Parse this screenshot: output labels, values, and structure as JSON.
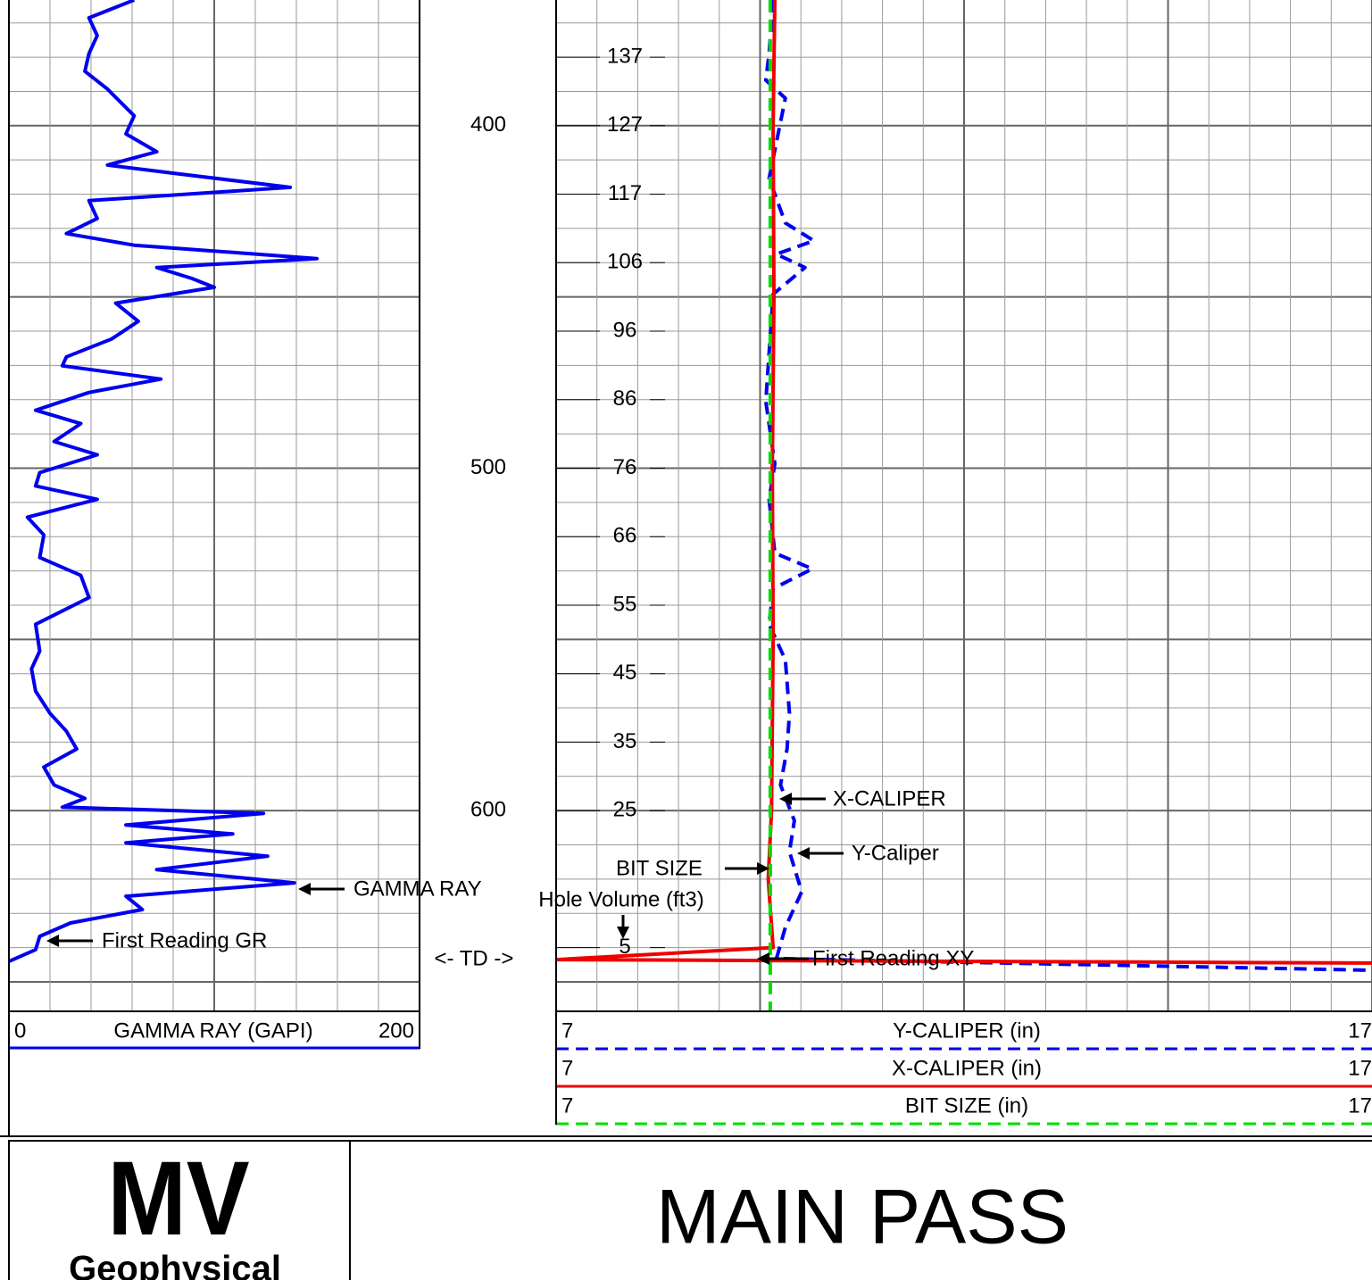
{
  "depth": {
    "ylim": [
      363.3,
      658.6
    ],
    "ticks": [
      400,
      500,
      600
    ],
    "grid_minor": 10,
    "grid_major": 50
  },
  "gamma_track": {
    "xlim": [
      0,
      200
    ],
    "grid_step": 20,
    "grid_major": 100,
    "series": [
      {
        "name": "GAMMA RAY (GAPI)",
        "color": "#0000ee",
        "depths": [
          363.3,
          368.5,
          373.7,
          378.9,
          384.1,
          389.3,
          397.1,
          402.4,
          407.6,
          411.5,
          414.1,
          418.0,
          421.9,
          427.1,
          431.5,
          434.9,
          438.8,
          441.4,
          444.6,
          447.2,
          451.8,
          457.1,
          462.3,
          467.5,
          470.1,
          474.0,
          477.9,
          483.1,
          487.0,
          492.2,
          496.1,
          501.3,
          505.2,
          509.1,
          514.3,
          519.5,
          526.1,
          531.3,
          537.8,
          545.6,
          553.4,
          558.6,
          565.1,
          571.6,
          576.8,
          582.0,
          587.3,
          592.5,
          596.4,
          599.0,
          600.8,
          604.2,
          606.8,
          609.4,
          613.3,
          617.2,
          621.1,
          625.0,
          628.9,
          632.8,
          636.7,
          640.6,
          644.0
        ],
        "values": [
          61,
          39,
          43,
          39,
          37,
          48,
          61,
          57,
          72,
          48,
          83,
          137,
          39,
          43,
          28,
          61,
          150,
          72,
          89,
          100,
          52,
          63,
          50,
          28,
          26,
          74,
          39,
          13,
          35,
          22,
          43,
          15,
          13,
          43,
          9,
          17,
          15,
          35,
          39,
          13,
          15,
          11,
          13,
          20,
          28,
          33,
          17,
          22,
          37,
          26,
          124,
          57,
          109,
          57,
          126,
          72,
          139,
          57,
          65,
          30,
          15,
          13,
          0
        ]
      }
    ]
  },
  "caliper_track": {
    "xlim": [
      7,
      17
    ],
    "grid_step": 0.5,
    "grid_major": 2.5,
    "series": [
      {
        "name": "Y-CALIPER (in)",
        "color": "#0000ee",
        "dashed": true,
        "depths": [
          363.3,
          378.9,
          386.7,
          392.0,
          415.4,
          428.4,
          433.6,
          437.5,
          441.4,
          449.2,
          480.5,
          498.7,
          509.1,
          524.8,
          529.4,
          535.2,
          545.6,
          556.0,
          571.6,
          582.0,
          592.5,
          602.9,
          612.0,
          623.7,
          634.1,
          643.2,
          646.6
        ],
        "values": [
          9.66,
          9.61,
          9.57,
          9.81,
          9.61,
          9.81,
          10.16,
          9.7,
          10.05,
          9.66,
          9.57,
          9.68,
          9.61,
          9.68,
          10.14,
          9.66,
          9.61,
          9.81,
          9.86,
          9.83,
          9.75,
          9.92,
          9.86,
          10.01,
          9.81,
          9.7,
          17
        ]
      },
      {
        "name": "X-CALIPER (in)",
        "color": "#ee0000",
        "dashed": false,
        "depths": [
          363.3,
          400,
          450,
          500,
          550,
          600,
          620,
          640,
          643.5,
          644.5
        ],
        "values": [
          9.68,
          9.66,
          9.67,
          9.65,
          9.66,
          9.64,
          9.6,
          9.66,
          7,
          17
        ]
      },
      {
        "name": "BIT SIZE (in)",
        "color": "#00dd00",
        "dashed": true,
        "depths": [
          363.3,
          658.6
        ],
        "values": [
          9.625,
          9.625
        ]
      }
    ]
  },
  "hole_volume": {
    "title": "Hole Volume (ft3)",
    "depths": [
      380,
      400,
      420,
      440,
      460,
      480,
      500,
      520,
      540,
      560,
      580,
      600,
      640
    ],
    "values": [
      137,
      127,
      117,
      106,
      96,
      86,
      76,
      66,
      55,
      45,
      35,
      25,
      5
    ]
  },
  "annotations": [
    "GAMMA RAY",
    "First Reading GR",
    "X-CALIPER",
    "Y-Caliper",
    "BIT SIZE",
    "<- TD ->",
    "First Reading XY"
  ],
  "footer": {
    "logo_main": "MV",
    "logo_sub": "Geophysical",
    "title": "MAIN PASS"
  }
}
